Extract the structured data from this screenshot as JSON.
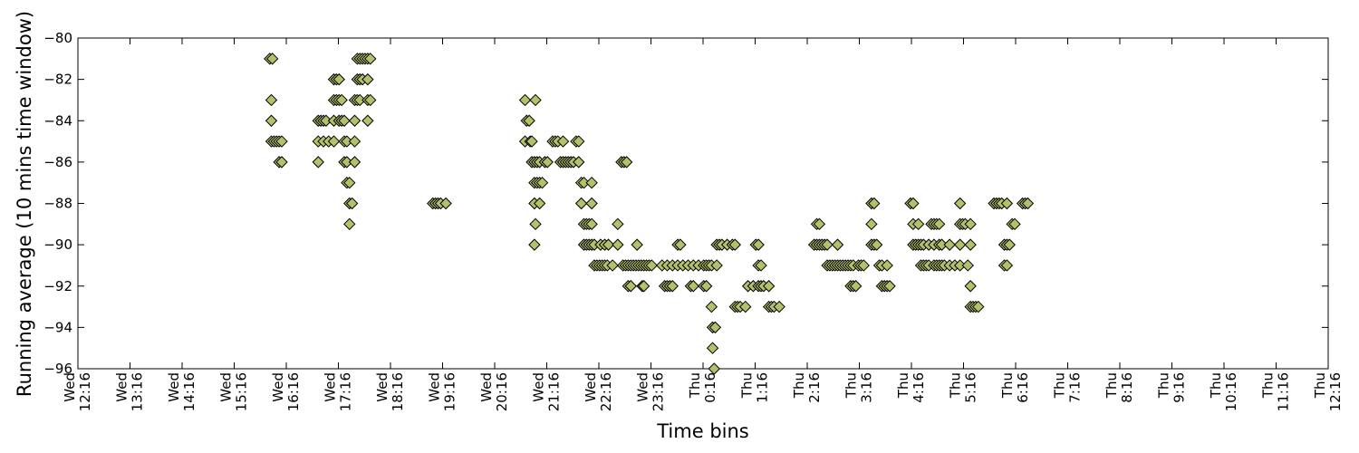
{
  "chart_data": {
    "type": "scatter",
    "title": "",
    "xlabel": "Time bins",
    "ylabel": "Running average (10 mins time window)",
    "ylim": [
      -96,
      -80
    ],
    "yticks": [
      -80,
      -82,
      -84,
      -86,
      -88,
      -90,
      -92,
      -94,
      -96
    ],
    "xlim_hours": [
      12.267,
      36.267
    ],
    "xticks": [
      {
        "day": "Wed",
        "time": "12:16"
      },
      {
        "day": "Wed",
        "time": "13:16"
      },
      {
        "day": "Wed",
        "time": "14:16"
      },
      {
        "day": "Wed",
        "time": "15:16"
      },
      {
        "day": "Wed",
        "time": "16:16"
      },
      {
        "day": "Wed",
        "time": "17:16"
      },
      {
        "day": "Wed",
        "time": "18:16"
      },
      {
        "day": "Wed",
        "time": "19:16"
      },
      {
        "day": "Wed",
        "time": "20:16"
      },
      {
        "day": "Wed",
        "time": "21:16"
      },
      {
        "day": "Wed",
        "time": "22:16"
      },
      {
        "day": "Wed",
        "time": "23:16"
      },
      {
        "day": "Thu",
        "time": "0:16"
      },
      {
        "day": "Thu",
        "time": "1:16"
      },
      {
        "day": "Thu",
        "time": "2:16"
      },
      {
        "day": "Thu",
        "time": "3:16"
      },
      {
        "day": "Thu",
        "time": "4:16"
      },
      {
        "day": "Thu",
        "time": "5:16"
      },
      {
        "day": "Thu",
        "time": "6:16"
      },
      {
        "day": "Thu",
        "time": "7:16"
      },
      {
        "day": "Thu",
        "time": "8:16"
      },
      {
        "day": "Thu",
        "time": "9:16"
      },
      {
        "day": "Thu",
        "time": "10:16"
      },
      {
        "day": "Thu",
        "time": "11:16"
      },
      {
        "day": "Thu",
        "time": "12:16"
      }
    ],
    "grid": false,
    "legend": "none",
    "marker": "diamond",
    "marker_color": "#b5c06b",
    "marker_edge_color": "#000000",
    "series": [
      {
        "points": [
          [
            15.95,
            -81
          ],
          [
            16.0,
            -81
          ],
          [
            15.98,
            -83
          ],
          [
            15.98,
            -84
          ],
          [
            15.98,
            -85
          ],
          [
            16.03,
            -85
          ],
          [
            16.08,
            -85
          ],
          [
            16.13,
            -85
          ],
          [
            16.18,
            -85
          ],
          [
            16.13,
            -86
          ],
          [
            16.18,
            -86
          ],
          [
            16.88,
            -84
          ],
          [
            16.93,
            -84
          ],
          [
            16.98,
            -84
          ],
          [
            17.03,
            -84
          ],
          [
            16.88,
            -85
          ],
          [
            16.98,
            -85
          ],
          [
            17.08,
            -85
          ],
          [
            16.88,
            -86
          ],
          [
            17.18,
            -82
          ],
          [
            17.23,
            -82
          ],
          [
            17.28,
            -82
          ],
          [
            17.18,
            -83
          ],
          [
            17.23,
            -83
          ],
          [
            17.28,
            -83
          ],
          [
            17.33,
            -83
          ],
          [
            17.18,
            -84
          ],
          [
            17.28,
            -84
          ],
          [
            17.33,
            -84
          ],
          [
            17.38,
            -84
          ],
          [
            17.18,
            -85
          ],
          [
            17.38,
            -85
          ],
          [
            17.43,
            -85
          ],
          [
            17.38,
            -86
          ],
          [
            17.43,
            -86
          ],
          [
            17.43,
            -87
          ],
          [
            17.48,
            -87
          ],
          [
            17.48,
            -88
          ],
          [
            17.53,
            -88
          ],
          [
            17.48,
            -89
          ],
          [
            17.63,
            -81
          ],
          [
            17.68,
            -81
          ],
          [
            17.73,
            -81
          ],
          [
            17.78,
            -81
          ],
          [
            17.83,
            -81
          ],
          [
            17.88,
            -81
          ],
          [
            17.63,
            -82
          ],
          [
            17.68,
            -82
          ],
          [
            17.73,
            -82
          ],
          [
            17.83,
            -82
          ],
          [
            17.58,
            -83
          ],
          [
            17.63,
            -83
          ],
          [
            17.68,
            -83
          ],
          [
            17.83,
            -83
          ],
          [
            17.88,
            -83
          ],
          [
            17.58,
            -84
          ],
          [
            17.83,
            -84
          ],
          [
            17.58,
            -85
          ],
          [
            17.58,
            -86
          ],
          [
            19.08,
            -88
          ],
          [
            19.13,
            -88
          ],
          [
            19.18,
            -88
          ],
          [
            19.23,
            -88
          ],
          [
            19.33,
            -88
          ],
          [
            20.85,
            -83
          ],
          [
            21.05,
            -83
          ],
          [
            20.88,
            -84
          ],
          [
            20.93,
            -84
          ],
          [
            20.85,
            -85
          ],
          [
            20.95,
            -85
          ],
          [
            20.98,
            -85
          ],
          [
            20.98,
            -86
          ],
          [
            21.03,
            -86
          ],
          [
            21.08,
            -86
          ],
          [
            21.13,
            -86
          ],
          [
            21.23,
            -86
          ],
          [
            21.28,
            -86
          ],
          [
            21.03,
            -87
          ],
          [
            21.08,
            -87
          ],
          [
            21.13,
            -87
          ],
          [
            21.18,
            -87
          ],
          [
            21.03,
            -88
          ],
          [
            21.13,
            -88
          ],
          [
            21.05,
            -89
          ],
          [
            21.03,
            -90
          ],
          [
            21.38,
            -85
          ],
          [
            21.43,
            -85
          ],
          [
            21.48,
            -85
          ],
          [
            21.58,
            -85
          ],
          [
            21.83,
            -85
          ],
          [
            21.88,
            -85
          ],
          [
            21.53,
            -86
          ],
          [
            21.58,
            -86
          ],
          [
            21.63,
            -86
          ],
          [
            21.68,
            -86
          ],
          [
            21.73,
            -86
          ],
          [
            21.78,
            -86
          ],
          [
            21.88,
            -86
          ],
          [
            21.93,
            -87
          ],
          [
            21.98,
            -87
          ],
          [
            22.13,
            -87
          ],
          [
            21.93,
            -88
          ],
          [
            22.13,
            -88
          ],
          [
            21.98,
            -89
          ],
          [
            22.03,
            -89
          ],
          [
            22.08,
            -89
          ],
          [
            22.13,
            -89
          ],
          [
            21.98,
            -90
          ],
          [
            22.03,
            -90
          ],
          [
            22.08,
            -90
          ],
          [
            22.13,
            -90
          ],
          [
            22.18,
            -90
          ],
          [
            22.3,
            -90
          ],
          [
            22.38,
            -90
          ],
          [
            22.45,
            -90
          ],
          [
            22.63,
            -90
          ],
          [
            22.18,
            -91
          ],
          [
            22.23,
            -91
          ],
          [
            22.28,
            -91
          ],
          [
            22.33,
            -91
          ],
          [
            22.38,
            -91
          ],
          [
            22.43,
            -91
          ],
          [
            22.53,
            -91
          ],
          [
            22.63,
            -89
          ],
          [
            22.7,
            -86
          ],
          [
            22.75,
            -86
          ],
          [
            22.8,
            -86
          ],
          [
            22.73,
            -91
          ],
          [
            22.78,
            -91
          ],
          [
            22.83,
            -91
          ],
          [
            22.88,
            -91
          ],
          [
            22.93,
            -91
          ],
          [
            22.98,
            -91
          ],
          [
            23.03,
            -91
          ],
          [
            23.08,
            -91
          ],
          [
            23.13,
            -91
          ],
          [
            23.18,
            -91
          ],
          [
            23.23,
            -91
          ],
          [
            23.28,
            -91
          ],
          [
            22.83,
            -92
          ],
          [
            22.88,
            -92
          ],
          [
            23.1,
            -92
          ],
          [
            23.13,
            -92
          ],
          [
            23.0,
            -90
          ],
          [
            23.53,
            -92
          ],
          [
            23.58,
            -92
          ],
          [
            23.63,
            -92
          ],
          [
            23.68,
            -92
          ],
          [
            23.48,
            -91
          ],
          [
            23.58,
            -91
          ],
          [
            23.68,
            -91
          ],
          [
            23.78,
            -91
          ],
          [
            23.88,
            -91
          ],
          [
            23.98,
            -91
          ],
          [
            24.08,
            -91
          ],
          [
            24.18,
            -91
          ],
          [
            24.28,
            -91
          ],
          [
            23.78,
            -90
          ],
          [
            23.83,
            -90
          ],
          [
            24.03,
            -92
          ],
          [
            24.08,
            -92
          ],
          [
            24.28,
            -92
          ],
          [
            24.33,
            -92
          ],
          [
            24.33,
            -91
          ],
          [
            24.38,
            -91
          ],
          [
            24.43,
            -91
          ],
          [
            24.53,
            -91
          ],
          [
            24.43,
            -93
          ],
          [
            24.45,
            -94
          ],
          [
            24.5,
            -94
          ],
          [
            24.45,
            -95
          ],
          [
            24.48,
            -96
          ],
          [
            24.53,
            -90
          ],
          [
            24.58,
            -90
          ],
          [
            24.63,
            -90
          ],
          [
            24.73,
            -90
          ],
          [
            24.83,
            -90
          ],
          [
            24.88,
            -90
          ],
          [
            24.88,
            -93
          ],
          [
            24.93,
            -93
          ],
          [
            24.98,
            -93
          ],
          [
            25.08,
            -93
          ],
          [
            25.13,
            -92
          ],
          [
            25.23,
            -92
          ],
          [
            25.33,
            -92
          ],
          [
            25.38,
            -92
          ],
          [
            25.43,
            -92
          ],
          [
            25.53,
            -92
          ],
          [
            25.28,
            -90
          ],
          [
            25.33,
            -90
          ],
          [
            25.33,
            -91
          ],
          [
            25.38,
            -91
          ],
          [
            25.53,
            -93
          ],
          [
            25.58,
            -93
          ],
          [
            25.63,
            -93
          ],
          [
            25.73,
            -93
          ],
          [
            26.45,
            -89
          ],
          [
            26.5,
            -89
          ],
          [
            26.4,
            -90
          ],
          [
            26.45,
            -90
          ],
          [
            26.5,
            -90
          ],
          [
            26.55,
            -90
          ],
          [
            26.6,
            -90
          ],
          [
            26.65,
            -90
          ],
          [
            26.85,
            -90
          ],
          [
            26.65,
            -91
          ],
          [
            26.7,
            -91
          ],
          [
            26.75,
            -91
          ],
          [
            26.8,
            -91
          ],
          [
            26.85,
            -91
          ],
          [
            26.9,
            -91
          ],
          [
            26.95,
            -91
          ],
          [
            27.0,
            -91
          ],
          [
            27.05,
            -91
          ],
          [
            27.1,
            -91
          ],
          [
            27.15,
            -91
          ],
          [
            27.25,
            -91
          ],
          [
            27.3,
            -91
          ],
          [
            27.35,
            -91
          ],
          [
            27.1,
            -92
          ],
          [
            27.15,
            -92
          ],
          [
            27.2,
            -92
          ],
          [
            27.5,
            -88
          ],
          [
            27.55,
            -88
          ],
          [
            27.5,
            -89
          ],
          [
            27.5,
            -90
          ],
          [
            27.55,
            -90
          ],
          [
            27.6,
            -90
          ],
          [
            27.65,
            -91
          ],
          [
            27.7,
            -91
          ],
          [
            27.8,
            -91
          ],
          [
            27.7,
            -92
          ],
          [
            27.75,
            -92
          ],
          [
            27.8,
            -92
          ],
          [
            27.85,
            -92
          ],
          [
            28.25,
            -88
          ],
          [
            28.3,
            -88
          ],
          [
            28.3,
            -89
          ],
          [
            28.4,
            -89
          ],
          [
            28.3,
            -90
          ],
          [
            28.35,
            -90
          ],
          [
            28.4,
            -90
          ],
          [
            28.45,
            -90
          ],
          [
            28.5,
            -90
          ],
          [
            28.6,
            -90
          ],
          [
            28.7,
            -90
          ],
          [
            28.8,
            -90
          ],
          [
            28.85,
            -90
          ],
          [
            29.0,
            -90
          ],
          [
            28.45,
            -91
          ],
          [
            28.5,
            -91
          ],
          [
            28.55,
            -91
          ],
          [
            28.6,
            -91
          ],
          [
            28.7,
            -91
          ],
          [
            28.75,
            -91
          ],
          [
            28.8,
            -91
          ],
          [
            28.85,
            -91
          ],
          [
            28.9,
            -91
          ],
          [
            29.0,
            -91
          ],
          [
            29.1,
            -91
          ],
          [
            29.2,
            -91
          ],
          [
            28.65,
            -89
          ],
          [
            28.7,
            -89
          ],
          [
            28.75,
            -89
          ],
          [
            28.8,
            -89
          ],
          [
            29.2,
            -88
          ],
          [
            29.2,
            -89
          ],
          [
            29.25,
            -89
          ],
          [
            29.3,
            -89
          ],
          [
            29.4,
            -89
          ],
          [
            29.2,
            -90
          ],
          [
            29.4,
            -90
          ],
          [
            29.35,
            -91
          ],
          [
            29.4,
            -92
          ],
          [
            29.4,
            -93
          ],
          [
            29.45,
            -93
          ],
          [
            29.5,
            -93
          ],
          [
            29.55,
            -93
          ],
          [
            29.85,
            -88
          ],
          [
            29.9,
            -88
          ],
          [
            29.95,
            -88
          ],
          [
            30.0,
            -88
          ],
          [
            30.1,
            -88
          ],
          [
            30.05,
            -90
          ],
          [
            30.1,
            -90
          ],
          [
            30.15,
            -90
          ],
          [
            30.05,
            -91
          ],
          [
            30.1,
            -91
          ],
          [
            30.2,
            -89
          ],
          [
            30.25,
            -89
          ],
          [
            30.4,
            -88
          ],
          [
            30.45,
            -88
          ],
          [
            30.5,
            -88
          ]
        ]
      }
    ]
  }
}
